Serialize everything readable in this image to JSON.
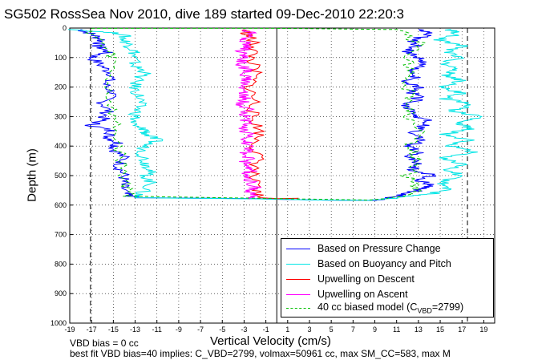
{
  "figure": {
    "title": "SG502 RossSea Nov 2010, dive 189 started 09-Dec-2010 22:20:3",
    "footer_line1": "VBD bias = 0 cc",
    "footer_line2": "best fit VBD bias=40 implies: C_VBD=2799, volmax=50961 cc, max SM_CC=583, max M"
  },
  "chart_data": {
    "type": "line",
    "xlabel": "Vertical Velocity (cm/s)",
    "ylabel": "Depth (m)",
    "xlim": [
      -19,
      20
    ],
    "ylim": [
      1000,
      0
    ],
    "y_reversed": true,
    "xticks": [
      -19,
      -17,
      -15,
      -13,
      -11,
      -9,
      -7,
      -5,
      -3,
      -1,
      1,
      3,
      5,
      7,
      9,
      11,
      13,
      15,
      17,
      19
    ],
    "yticks": [
      0,
      100,
      200,
      300,
      400,
      500,
      600,
      700,
      800,
      900,
      1000
    ],
    "grid": true,
    "reference_lines": {
      "dashed_x": [
        -17.1,
        17.5
      ],
      "solid_x": [
        0
      ]
    },
    "legend_position": "bottom-right",
    "series": [
      {
        "name": "Based on Pressure Change",
        "color": "#0000ff",
        "points": [
          [
            -18,
            5
          ],
          [
            -17,
            20
          ],
          [
            -16,
            40
          ],
          [
            -16.5,
            60
          ],
          [
            -15.5,
            80
          ],
          [
            -17,
            100
          ],
          [
            -16,
            130
          ],
          [
            -15,
            160
          ],
          [
            -15.8,
            190
          ],
          [
            -15,
            220
          ],
          [
            -16,
            250
          ],
          [
            -15.5,
            280
          ],
          [
            -16,
            310
          ],
          [
            -17,
            330
          ],
          [
            -15,
            350
          ],
          [
            -15.5,
            370
          ],
          [
            -14.5,
            390
          ],
          [
            -15,
            410
          ],
          [
            -14,
            440
          ],
          [
            -14.5,
            470
          ],
          [
            -14,
            500
          ],
          [
            -14.2,
            530
          ],
          [
            -14,
            560
          ],
          [
            -13,
            575
          ],
          [
            -2,
            578
          ],
          [
            -0.3,
            580
          ],
          [
            4,
            583
          ],
          [
            9,
            584
          ],
          [
            10.5,
            575
          ],
          [
            12,
            560
          ],
          [
            13.5,
            545
          ],
          [
            14,
            530
          ],
          [
            13,
            515
          ],
          [
            14.5,
            500
          ],
          [
            12.5,
            480
          ],
          [
            13,
            460
          ],
          [
            12,
            440
          ],
          [
            13,
            420
          ],
          [
            12,
            400
          ],
          [
            13.5,
            380
          ],
          [
            12.5,
            360
          ],
          [
            13,
            340
          ],
          [
            14,
            320
          ],
          [
            13,
            300
          ],
          [
            12.5,
            280
          ],
          [
            12,
            260
          ],
          [
            13,
            240
          ],
          [
            12.5,
            220
          ],
          [
            13,
            200
          ],
          [
            12,
            180
          ],
          [
            13,
            160
          ],
          [
            12.5,
            140
          ],
          [
            13.5,
            120
          ],
          [
            13,
            100
          ],
          [
            12,
            80
          ],
          [
            13,
            60
          ],
          [
            12.5,
            40
          ],
          [
            14,
            20
          ],
          [
            13,
            5
          ]
        ]
      },
      {
        "name": "Based on Buoyancy and Pitch",
        "color": "#00e5e5",
        "points": [
          [
            -18.5,
            5
          ],
          [
            -14,
            20
          ],
          [
            -14,
            40
          ],
          [
            -13.5,
            60
          ],
          [
            -13,
            80
          ],
          [
            -13.2,
            100
          ],
          [
            -13,
            130
          ],
          [
            -12,
            150
          ],
          [
            -13,
            180
          ],
          [
            -13,
            210
          ],
          [
            -12.5,
            240
          ],
          [
            -12.7,
            270
          ],
          [
            -13,
            300
          ],
          [
            -13.3,
            330
          ],
          [
            -12,
            345
          ],
          [
            -12,
            360
          ],
          [
            -11,
            380
          ],
          [
            -12.2,
            400
          ],
          [
            -12.3,
            430
          ],
          [
            -12,
            460
          ],
          [
            -11.5,
            480
          ],
          [
            -12,
            500
          ],
          [
            -11.5,
            530
          ],
          [
            -12.5,
            560
          ],
          [
            -13,
            575
          ],
          [
            -1.5,
            579
          ],
          [
            4,
            583
          ],
          [
            9,
            584
          ],
          [
            12,
            570
          ],
          [
            14.5,
            560
          ],
          [
            16,
            540
          ],
          [
            15,
            520
          ],
          [
            17,
            500
          ],
          [
            15.5,
            480
          ],
          [
            17,
            460
          ],
          [
            15,
            440
          ],
          [
            18,
            420
          ],
          [
            16,
            400
          ],
          [
            17.5,
            380
          ],
          [
            15.5,
            360
          ],
          [
            18,
            340
          ],
          [
            16.5,
            320
          ],
          [
            19,
            300
          ],
          [
            16,
            280
          ],
          [
            18,
            260
          ],
          [
            15.5,
            240
          ],
          [
            17,
            220
          ],
          [
            15,
            200
          ],
          [
            17,
            180
          ],
          [
            15.5,
            160
          ],
          [
            16.5,
            140
          ],
          [
            15,
            120
          ],
          [
            17,
            100
          ],
          [
            15.5,
            80
          ],
          [
            17,
            60
          ],
          [
            15,
            40
          ],
          [
            16.5,
            20
          ],
          [
            16,
            5
          ]
        ]
      },
      {
        "name": "Upwelling on Descent",
        "color": "#ff0000",
        "points": [
          [
            -3,
            5
          ],
          [
            -2.5,
            30
          ],
          [
            -2,
            60
          ],
          [
            -2.3,
            100
          ],
          [
            -2,
            150
          ],
          [
            -2.5,
            200
          ],
          [
            -2,
            250
          ],
          [
            -2.3,
            300
          ],
          [
            -1.5,
            350
          ],
          [
            -2,
            400
          ],
          [
            -1.7,
            450
          ],
          [
            -2.3,
            500
          ],
          [
            -2,
            550
          ],
          [
            -1.5,
            575
          ],
          [
            0,
            578
          ],
          [
            2,
            577
          ]
        ]
      },
      {
        "name": "Upwelling on Ascent",
        "color": "#ff00ff",
        "points": [
          [
            -2,
            580
          ],
          [
            -2.5,
            560
          ],
          [
            -2,
            540
          ],
          [
            -2.5,
            520
          ],
          [
            -2.8,
            500
          ],
          [
            -2.3,
            480
          ],
          [
            -3,
            460
          ],
          [
            -2.5,
            440
          ],
          [
            -2.8,
            420
          ],
          [
            -2.5,
            400
          ],
          [
            -3,
            380
          ],
          [
            -2.7,
            360
          ],
          [
            -3.2,
            340
          ],
          [
            -2.8,
            320
          ],
          [
            -3,
            300
          ],
          [
            -2.6,
            280
          ],
          [
            -3.3,
            260
          ],
          [
            -2.8,
            240
          ],
          [
            -3,
            220
          ],
          [
            -3.2,
            200
          ],
          [
            -2.6,
            180
          ],
          [
            -3,
            160
          ],
          [
            -2.8,
            140
          ],
          [
            -3.3,
            120
          ],
          [
            -3,
            100
          ],
          [
            -3.2,
            80
          ],
          [
            -2.7,
            60
          ],
          [
            -3,
            40
          ],
          [
            -2.5,
            20
          ],
          [
            -2.8,
            5
          ]
        ]
      },
      {
        "name": "40 cc biased model (C_VBD=2799)",
        "color": "#00c000",
        "dashed": true,
        "points": [
          [
            -17,
            10
          ],
          [
            -16,
            60
          ],
          [
            -15,
            100
          ],
          [
            -15.5,
            200
          ],
          [
            -15,
            300
          ],
          [
            -14.5,
            400
          ],
          [
            -14,
            500
          ],
          [
            -13.5,
            570
          ],
          [
            0,
            578
          ],
          [
            9,
            583
          ],
          [
            12,
            570
          ],
          [
            13,
            540
          ],
          [
            12,
            500
          ],
          [
            13,
            450
          ],
          [
            12,
            400
          ],
          [
            13,
            350
          ],
          [
            12,
            300
          ],
          [
            12.5,
            250
          ],
          [
            12,
            200
          ],
          [
            12.5,
            150
          ],
          [
            12,
            100
          ],
          [
            13,
            50
          ],
          [
            11,
            5
          ],
          [
            0,
            1
          ],
          [
            -17,
            1
          ]
        ]
      }
    ]
  },
  "legend": {
    "items": [
      {
        "label": "Based on Pressure Change",
        "color": "#0000ff"
      },
      {
        "label": "Based on Buoyancy and Pitch",
        "color": "#00e5e5"
      },
      {
        "label": "Upwelling on Descent",
        "color": "#ff0000"
      },
      {
        "label": "Upwelling on Ascent",
        "color": "#ff00ff"
      },
      {
        "label_main": "40 cc biased model (C",
        "label_sub": "VBD",
        "label_end": "=2799)",
        "color": "#00c000"
      }
    ]
  }
}
